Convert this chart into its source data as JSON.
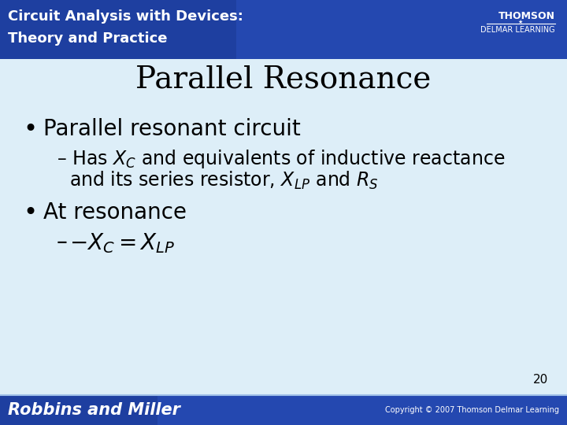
{
  "title": "Parallel Resonance",
  "title_fontsize": 28,
  "title_color": "#000000",
  "header_bg_left": "#1a3aaa",
  "header_bg_right": "#2255cc",
  "header_text1": "Circuit Analysis with Devices:",
  "header_text2": "Theory and Practice",
  "header_fontsize": 13,
  "body_bg": "#ddeef8",
  "footer_bg_left": "#1a3aaa",
  "footer_bg_right": "#2255cc",
  "footer_text": "Robbins and Miller",
  "footer_right": "Copyright © 2007 Thomson Delmar Learning",
  "page_number": "20",
  "bullet1": "Parallel resonant circuit",
  "bullet1_fontsize": 20,
  "sub1_line1": "Has $X_C$ and equivalents of inductive reactance",
  "sub1_line2": "and its series resistor, $X_{LP}$ and $R_S$",
  "sub_fontsize": 17,
  "bullet2": "At resonance",
  "bullet2_fontsize": 20,
  "sub2_prefix": "– ",
  "sub2_formula": "$X_C = X_{LP}$",
  "sub2_minus": "–",
  "sub2_fontsize": 20,
  "thomson_text1": "THOMSON",
  "thomson_text2": "DELMAR LEARNING"
}
